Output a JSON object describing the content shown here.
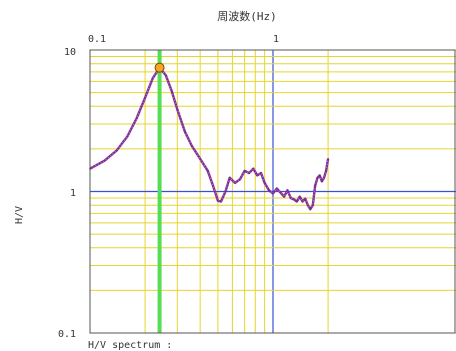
{
  "chart_data": {
    "type": "line",
    "title": "",
    "xlabel": "周波数(Hz)",
    "ylabel": "H/V",
    "footer_label": "H/V spectrum :",
    "x_scale": "log",
    "y_scale": "log",
    "xlim": [
      0.1,
      2.0
    ],
    "ylim": [
      0.1,
      10
    ],
    "x_tick_labels": [
      "0.1",
      "1"
    ],
    "y_tick_labels": [
      "10",
      "1",
      "0.1"
    ],
    "grid": true,
    "legend": "none",
    "peak": {
      "x": 0.24,
      "y": 7.5
    },
    "highlight_band_x": 0.24,
    "series": [
      {
        "x": [
          0.1,
          0.12,
          0.14,
          0.16,
          0.18,
          0.2,
          0.22,
          0.24,
          0.26,
          0.28,
          0.3,
          0.33,
          0.36,
          0.4,
          0.44,
          0.47,
          0.5,
          0.52,
          0.55,
          0.58,
          0.62,
          0.66,
          0.7,
          0.74,
          0.78,
          0.82,
          0.86,
          0.9,
          0.95,
          1.0,
          1.05,
          1.1,
          1.15,
          1.2,
          1.25,
          1.3,
          1.35,
          1.4,
          1.45,
          1.5,
          1.55,
          1.6,
          1.65,
          1.7,
          1.75,
          1.8,
          1.85,
          1.9,
          1.95,
          2.0
        ],
        "y": [
          1.45,
          1.65,
          1.95,
          2.45,
          3.3,
          4.6,
          6.3,
          7.5,
          6.6,
          5.1,
          3.8,
          2.65,
          2.1,
          1.7,
          1.4,
          1.1,
          0.86,
          0.85,
          1.0,
          1.25,
          1.15,
          1.22,
          1.4,
          1.35,
          1.45,
          1.3,
          1.35,
          1.15,
          1.02,
          0.97,
          1.05,
          0.98,
          0.92,
          1.02,
          0.9,
          0.88,
          0.85,
          0.92,
          0.85,
          0.89,
          0.8,
          0.75,
          0.8,
          1.1,
          1.25,
          1.3,
          1.18,
          1.25,
          1.4,
          1.7
        ]
      }
    ],
    "colors": {
      "grid": "#e4d62e",
      "unit_line": "#3a4fd9",
      "band": "#55dd55",
      "curve": "#7a2f8f",
      "curve_dots": "#d070e0",
      "peak_fill": "#f5a623",
      "frame": "#555555"
    }
  }
}
